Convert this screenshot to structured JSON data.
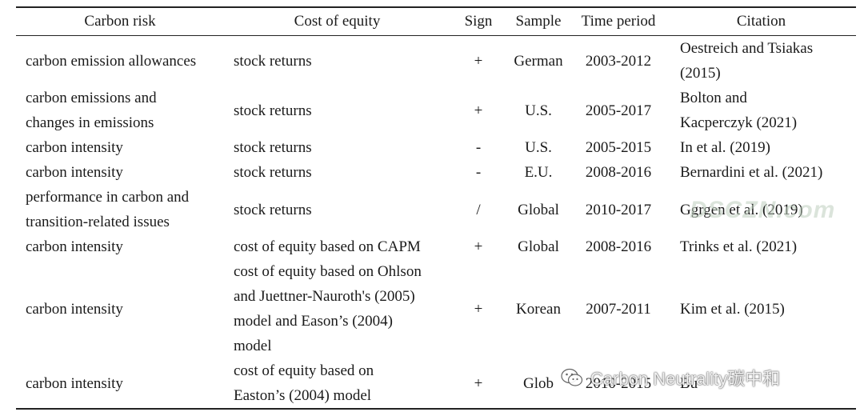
{
  "headers": [
    "Carbon risk",
    "Cost of equity",
    "Sign",
    "Sample",
    "Time period",
    "Citation"
  ],
  "rows": [
    {
      "risk": "carbon emission allowances",
      "cost": "stock returns",
      "sign": "+",
      "sample": "German",
      "period": "2003-2012",
      "citation": "Oestreich and Tsiakas\n(2015)"
    },
    {
      "risk": "carbon emissions and\nchanges in emissions",
      "cost": "stock returns",
      "sign": "+",
      "sample": "U.S.",
      "period": "2005-2017",
      "citation": "Bolton and\nKacperczyk (2021)"
    },
    {
      "risk": "carbon intensity",
      "cost": "stock returns",
      "sign": "-",
      "sample": "U.S.",
      "period": "2005-2015",
      "citation": "In et al. (2019)"
    },
    {
      "risk": "carbon intensity",
      "cost": "stock returns",
      "sign": "-",
      "sample": "E.U.",
      "period": "2008-2016",
      "citation": "Bernardini et al. (2021)"
    },
    {
      "risk": "performance in carbon and\ntransition-related issues",
      "cost": "stock returns",
      "sign": "/",
      "sample": "Global",
      "period": "2010-2017",
      "citation": "Ggrgen et al. (2019)"
    },
    {
      "risk": "carbon intensity",
      "cost": "cost of equity based on CAPM",
      "sign": "+",
      "sample": "Global",
      "period": "2008-2016",
      "citation": "Trinks et al. (2021)"
    },
    {
      "risk": "carbon intensity",
      "cost": "cost of equity based on Ohlson\nand Juettner-Nauroth's (2005)\nmodel and Eason’s (2004)\nmodel",
      "sign": "+",
      "sample": "Korean",
      "period": "2007-2011",
      "citation": "Kim et al. (2015)"
    },
    {
      "risk": "carbon intensity",
      "cost": "cost of equity based on\nEaston’s (2004) model",
      "sign": "+",
      "sample": "Glob",
      "period": "2010-2015",
      "citation": "Bu"
    }
  ],
  "watermarks": {
    "site": "DSCZN.com",
    "account": "Carbon Neutrality碳中和"
  }
}
